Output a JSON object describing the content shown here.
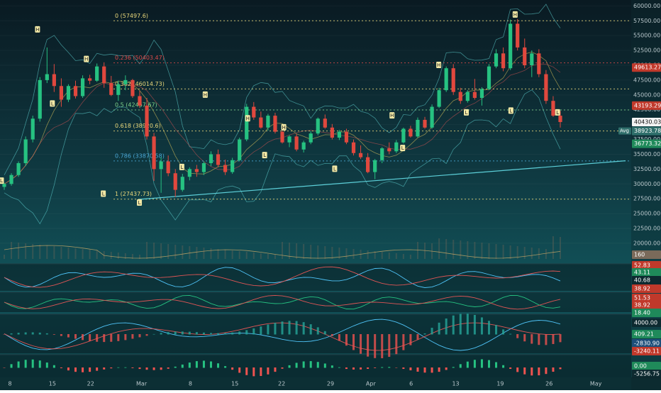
{
  "chart_data": {
    "type": "candlestick",
    "main": {
      "x_tick_labels": [
        "8",
        "15",
        "22",
        "Mar",
        "8",
        "15",
        "22",
        "29",
        "Apr",
        "6",
        "13",
        "19",
        "26",
        "May"
      ],
      "y_ticks": [
        60000,
        57500,
        55000,
        52500,
        50000,
        47500,
        45000,
        42500,
        40000,
        37500,
        35000,
        32500,
        30000,
        27500,
        25000,
        22500,
        20000
      ],
      "y_tick_labels": [
        "60000.00",
        "57500.00",
        "55000.00",
        "52500.00",
        "50000.00",
        "47500.00",
        "45000.00",
        "42500.00",
        "40000.00",
        "37500.00",
        "35000.00",
        "32500.00",
        "30000.00",
        "27500.00",
        "25000.00",
        "22500.00",
        "20000.00"
      ],
      "ylim": [
        17000,
        61000
      ],
      "fib_levels": [
        {
          "label": "0 (57497.6)",
          "value": 57497.6,
          "color": "#e8d77a"
        },
        {
          "label": "0.236 (50403.47)",
          "value": 50403.47,
          "color": "#d94a4a"
        },
        {
          "label": "0.382 (46014.73)",
          "value": 46014.73,
          "color": "#e8d77a"
        },
        {
          "label": "0.5 (42467.67)",
          "value": 42467.67,
          "color": "#7fd38a"
        },
        {
          "label": "0.618 (38920.6)",
          "value": 38920.6,
          "color": "#e8d77a"
        },
        {
          "label": "0.786 (33870.58)",
          "value": 33870.58,
          "color": "#4aa8d6"
        },
        {
          "label": "1 (27437.73)",
          "value": 27437.73,
          "color": "#e8d77a"
        }
      ],
      "price_badges": [
        {
          "label": "49613.27",
          "value": 49613.27,
          "color": "#c0392b"
        },
        {
          "label": "43193.29",
          "value": 43193.29,
          "color": "#c0392b"
        },
        {
          "label": "40430.03",
          "value": 40430.03,
          "color": "#f4f4f4"
        },
        {
          "label": "38923.78",
          "value": 38923.78,
          "color": "#2f6f6b"
        },
        {
          "label": "36773.32",
          "value": 36773.32,
          "color": "#1f8a5a"
        }
      ],
      "avg_label": "Avg",
      "pivot_labels": [
        {
          "text": "H",
          "x": 1.7,
          "y": 56000
        },
        {
          "text": "L",
          "x": 0.0,
          "y": 30500
        },
        {
          "text": "L",
          "x": 2.4,
          "y": 43500
        },
        {
          "text": "H",
          "x": 4.0,
          "y": 51000
        },
        {
          "text": "L",
          "x": 4.8,
          "y": 28300
        },
        {
          "text": "L",
          "x": 6.5,
          "y": 26800
        },
        {
          "text": "L",
          "x": 8.5,
          "y": 32800
        },
        {
          "text": "H",
          "x": 9.6,
          "y": 45000
        },
        {
          "text": "H",
          "x": 11.6,
          "y": 41000
        },
        {
          "text": "L",
          "x": 12.4,
          "y": 34800
        },
        {
          "text": "H",
          "x": 13.3,
          "y": 39500
        },
        {
          "text": "L",
          "x": 15.7,
          "y": 32500
        },
        {
          "text": "H",
          "x": 18.4,
          "y": 41500
        },
        {
          "text": "L",
          "x": 18.9,
          "y": 36000
        },
        {
          "text": "H",
          "x": 20.6,
          "y": 50000
        },
        {
          "text": "L",
          "x": 21.9,
          "y": 42000
        },
        {
          "text": "H",
          "x": 24.2,
          "y": 58500
        },
        {
          "text": "L",
          "x": 24.0,
          "y": 42300
        },
        {
          "text": "L",
          "x": 26.2,
          "y": 42000
        }
      ],
      "trendline": {
        "start": [
          6.5,
          27400
        ],
        "end": [
          29.4,
          33900
        ]
      },
      "candles": [
        [
          29500,
          30200,
          29000,
          30000
        ],
        [
          30000,
          31800,
          29700,
          31500
        ],
        [
          31500,
          33800,
          31200,
          33500
        ],
        [
          33500,
          38000,
          33000,
          37500
        ],
        [
          37500,
          41500,
          37000,
          41000
        ],
        [
          41000,
          48000,
          40500,
          47500
        ],
        [
          47500,
          53000,
          47000,
          48500
        ],
        [
          48500,
          50200,
          45500,
          46500
        ],
        [
          46500,
          47800,
          43000,
          44200
        ],
        [
          44200,
          46800,
          43800,
          46500
        ],
        [
          46500,
          47400,
          44400,
          44800
        ],
        [
          44800,
          48300,
          44500,
          47800
        ],
        [
          47800,
          48400,
          46800,
          47400
        ],
        [
          47400,
          50300,
          47200,
          49800
        ],
        [
          49800,
          50500,
          46200,
          47000
        ],
        [
          47000,
          48200,
          44800,
          45000
        ],
        [
          45000,
          47400,
          44000,
          46800
        ],
        [
          46800,
          48300,
          45800,
          47500
        ],
        [
          47500,
          47700,
          44500,
          44800
        ],
        [
          44800,
          45700,
          42800,
          43200
        ],
        [
          43200,
          44500,
          37500,
          38000
        ],
        [
          38000,
          38600,
          30500,
          32500
        ],
        [
          32500,
          34500,
          28500,
          33800
        ],
        [
          33800,
          34800,
          31300,
          31800
        ],
        [
          31800,
          32500,
          27800,
          29000
        ],
        [
          29000,
          31700,
          28700,
          31200
        ],
        [
          31200,
          32800,
          30600,
          32500
        ],
        [
          32500,
          33200,
          31200,
          32000
        ],
        [
          32000,
          33800,
          31500,
          33500
        ],
        [
          33500,
          35500,
          33000,
          35000
        ],
        [
          35000,
          35800,
          32800,
          33200
        ],
        [
          33200,
          34100,
          31500,
          32000
        ],
        [
          32000,
          34400,
          31700,
          34000
        ],
        [
          34000,
          37800,
          33800,
          37500
        ],
        [
          37500,
          43500,
          37200,
          43000
        ],
        [
          43000,
          43800,
          40800,
          41200
        ],
        [
          41200,
          42200,
          39300,
          39500
        ],
        [
          39500,
          41800,
          39000,
          41500
        ],
        [
          41500,
          42000,
          38500,
          38800
        ],
        [
          38800,
          39200,
          36800,
          37000
        ],
        [
          37000,
          38200,
          36200,
          38000
        ],
        [
          38000,
          38400,
          35500,
          35800
        ],
        [
          35800,
          37300,
          35300,
          37000
        ],
        [
          37000,
          38900,
          36700,
          38500
        ],
        [
          38500,
          41200,
          38200,
          41000
        ],
        [
          41000,
          41700,
          39300,
          39500
        ],
        [
          39500,
          40100,
          37500,
          37800
        ],
        [
          37800,
          39100,
          37400,
          38800
        ],
        [
          38800,
          39300,
          36700,
          37000
        ],
        [
          37000,
          37500,
          34800,
          35200
        ],
        [
          35200,
          36500,
          34200,
          34500
        ],
        [
          34500,
          35200,
          31800,
          32000
        ],
        [
          32000,
          34200,
          30800,
          34000
        ],
        [
          34000,
          36200,
          33500,
          36000
        ],
        [
          36000,
          37000,
          35000,
          35500
        ],
        [
          35500,
          37400,
          35200,
          37000
        ],
        [
          37000,
          39500,
          36800,
          39300
        ],
        [
          39300,
          39800,
          37800,
          38000
        ],
        [
          38000,
          41200,
          37800,
          40800
        ],
        [
          40800,
          41300,
          39300,
          39500
        ],
        [
          39500,
          43400,
          39300,
          43000
        ],
        [
          43000,
          46200,
          42800,
          45800
        ],
        [
          45800,
          49800,
          45500,
          49500
        ],
        [
          49500,
          50200,
          45000,
          45500
        ],
        [
          45500,
          46200,
          43500,
          44000
        ],
        [
          44000,
          45800,
          43700,
          45500
        ],
        [
          45500,
          47700,
          44200,
          44500
        ],
        [
          44500,
          46300,
          43200,
          46000
        ],
        [
          46000,
          50200,
          45800,
          49800
        ],
        [
          49800,
          52700,
          49500,
          52000
        ],
        [
          52000,
          53000,
          49000,
          49500
        ],
        [
          49500,
          57700,
          49200,
          57000
        ],
        [
          57000,
          57800,
          52500,
          53000
        ],
        [
          53000,
          54500,
          49500,
          50000
        ],
        [
          50000,
          52500,
          48000,
          52000
        ],
        [
          52000,
          52700,
          48000,
          48500
        ],
        [
          48500,
          49200,
          43500,
          44000
        ],
        [
          44000,
          44800,
          41300,
          41500
        ],
        [
          41500,
          42300,
          39500,
          40430
        ]
      ]
    },
    "indicators": [
      {
        "name": "volume",
        "labels": [
          "160"
        ]
      },
      {
        "name": "oscillator_1",
        "labels": [
          "52.83",
          "43.11",
          "40.68",
          "38.92"
        ]
      },
      {
        "name": "oscillator_2",
        "labels": [
          "51.53",
          "38.92",
          "18.40"
        ]
      },
      {
        "name": "macd",
        "labels": [
          "4000.00",
          "409.21",
          "-2830.90",
          "-3240.11"
        ]
      },
      {
        "name": "histogram",
        "labels": [
          "0.00",
          "-5256.75"
        ]
      }
    ]
  }
}
